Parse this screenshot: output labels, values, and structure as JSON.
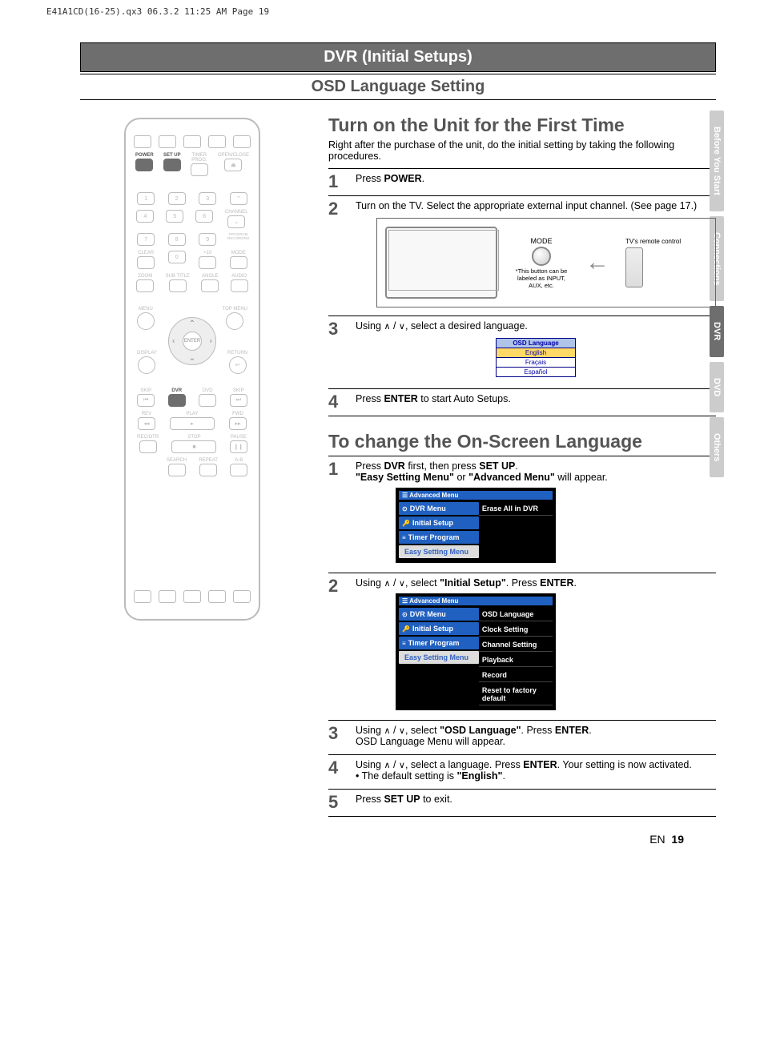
{
  "printmark": "E41A1CD(16-25).qx3  06.3.2 11:25 AM  Page 19",
  "header": "DVR (Initial Setups)",
  "subheader": "OSD Language Setting",
  "side_tabs": [
    "Before You Start",
    "Connections",
    "DVR",
    "DVD",
    "Others"
  ],
  "side_tab_active": 2,
  "remote": {
    "row1_labels": [
      "POWER",
      "SET UP",
      "TIMER\nPROG.",
      "OPEN/CLOSE"
    ],
    "nums": [
      "1",
      "2",
      "3",
      "4",
      "5",
      "6",
      "7",
      "8",
      "9",
      "0"
    ],
    "clear": "CLEAR",
    "plus10": "+10",
    "channel": "CHANNEL",
    "prog_rec": "PROGRAM\nRECORDING",
    "mode": "MODE",
    "zoom": "ZOOM",
    "subtitle": "SUB TITLE",
    "angle": "ANGLE",
    "audio": "AUDIO",
    "menu": "MENU",
    "topmenu": "TOP MENU",
    "display": "DISPLAY",
    "return": "RETURN",
    "enter": "ENTER",
    "skip_l": "SKIP",
    "dvr": "DVR",
    "dvd": "DVD",
    "skip_r": "SKIP",
    "rev": "REV",
    "play": "PLAY",
    "fwd": "FWD",
    "recotr": "REC/OTR",
    "stop": "STOP",
    "pause": "PAUSE",
    "search": "SEARCH",
    "repeat": "REPEAT",
    "ab": "A-B"
  },
  "turn_on": {
    "heading": "Turn on the Unit for the First Time",
    "intro": "Right after the purchase of the unit, do the initial setting by taking the following procedures.",
    "steps": [
      {
        "n": "1",
        "body_html": "Press <strong>POWER</strong>."
      },
      {
        "n": "2",
        "body_html": "Turn on the TV.  Select the appropriate external input channel.  (See page 17.)"
      },
      {
        "n": "3",
        "body_html": "Using <span class='arrow-sym'>&and;</span> / <span class='arrow-sym'>&or;</span>, select a desired language."
      },
      {
        "n": "4",
        "body_html": "Press <strong>ENTER</strong> to start Auto Setups."
      }
    ],
    "tv_diagram": {
      "mode": "MODE",
      "note": "*This button can be labeled as INPUT, AUX,  etc.",
      "caption": "TV's remote control"
    },
    "osd_menu": {
      "header": "OSD Language",
      "items": [
        "English",
        "Fraçais",
        "Español"
      ],
      "selected": 0
    }
  },
  "change_lang": {
    "heading": "To change the On-Screen Language",
    "steps": [
      {
        "n": "1",
        "body_html": "Press <strong>DVR</strong> first, then press <strong>SET UP</strong>.<br><strong>\"Easy Setting Menu\"</strong> or <strong>\"Advanced Menu\"</strong> will appear."
      },
      {
        "n": "2",
        "body_html": "Using <span class='arrow-sym'>&and;</span> / <span class='arrow-sym'>&or;</span>, select <strong>\"Initial Setup\"</strong>.  Press <strong>ENTER</strong>."
      },
      {
        "n": "3",
        "body_html": "Using <span class='arrow-sym'>&and;</span> / <span class='arrow-sym'>&or;</span>, select <strong>\"OSD Language\"</strong>. Press <strong>ENTER</strong>.<br>OSD Language Menu will appear."
      },
      {
        "n": "4",
        "body_html": "Using <span class='arrow-sym'>&and;</span> / <span class='arrow-sym'>&or;</span>, select a language.  Press <strong>ENTER</strong>. Your setting is now activated.<br><span class='note-line'>• The default setting is <strong>\"English\"</strong>.</span>"
      },
      {
        "n": "5",
        "body_html": "Press <strong>SET UP</strong> to exit."
      }
    ],
    "adv_menu1": {
      "title": "Advanced Menu",
      "left": [
        "DVR Menu",
        "Initial Setup",
        "Timer Program",
        "Easy Setting Menu"
      ],
      "left_sel": null,
      "left_sel_easy": 3,
      "right": [
        "Erase All in DVR"
      ]
    },
    "adv_menu2": {
      "title": "Advanced Menu",
      "left": [
        "DVR Menu",
        "Initial Setup",
        "Timer Program",
        "Easy Setting Menu"
      ],
      "left_sel": 1,
      "right": [
        "OSD Language",
        "Clock Setting",
        "Channel Setting",
        "Playback",
        "Record",
        "Reset to factory default"
      ]
    }
  },
  "footer": {
    "lang": "EN",
    "page": "19"
  }
}
